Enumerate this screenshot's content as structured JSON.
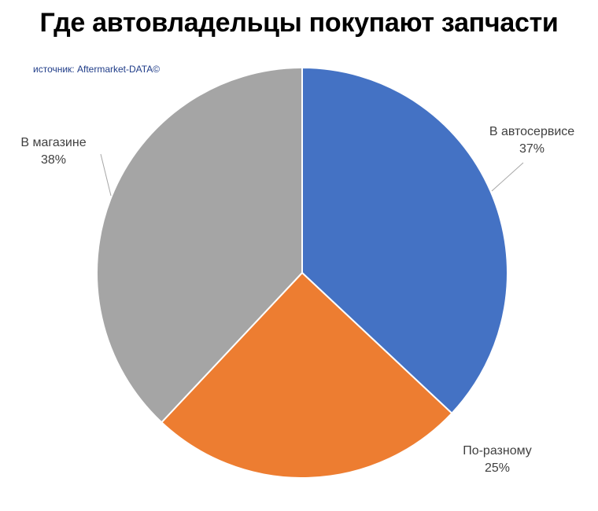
{
  "title": "Где автовладельцы покупают запчасти",
  "source": "источник: Aftermarket-DATA©",
  "colors": {
    "service": "#4472c4",
    "various": "#ed7d31",
    "store": "#a5a5a5",
    "leader": "#a6a6a6",
    "text": "#404040"
  },
  "chart_data": {
    "type": "pie",
    "title": "Где автовладельцы покупают запчасти",
    "start_angle_deg": 0,
    "direction": "clockwise",
    "slices": [
      {
        "label": "В автосервисе",
        "value": 37,
        "value_label": "37%",
        "color": "#4472c4"
      },
      {
        "label": "По-разному",
        "value": 25,
        "value_label": "25%",
        "color": "#ed7d31"
      },
      {
        "label": "В магазине",
        "value": 38,
        "value_label": "38%",
        "color": "#a5a5a5"
      }
    ],
    "legend": "none",
    "data_labels": "outside with leader lines"
  }
}
